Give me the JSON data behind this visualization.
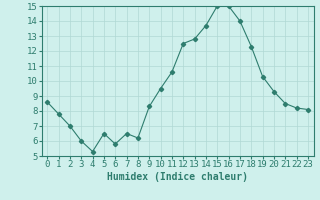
{
  "x": [
    0,
    1,
    2,
    3,
    4,
    5,
    6,
    7,
    8,
    9,
    10,
    11,
    12,
    13,
    14,
    15,
    16,
    17,
    18,
    19,
    20,
    21,
    22,
    23
  ],
  "y": [
    8.6,
    7.8,
    7.0,
    6.0,
    5.3,
    6.5,
    5.8,
    6.5,
    6.2,
    8.3,
    9.5,
    10.6,
    12.5,
    12.8,
    13.7,
    15.0,
    15.0,
    14.0,
    12.3,
    10.3,
    9.3,
    8.5,
    8.2,
    8.1
  ],
  "line_color": "#2e7d6e",
  "marker": "D",
  "marker_size": 2.2,
  "bg_color": "#cff0ec",
  "grid_color": "#b0d8d4",
  "xlabel": "Humidex (Indice chaleur)",
  "ylim": [
    5,
    15
  ],
  "xlim": [
    -0.5,
    23.5
  ],
  "yticks": [
    5,
    6,
    7,
    8,
    9,
    10,
    11,
    12,
    13,
    14,
    15
  ],
  "xticks": [
    0,
    1,
    2,
    3,
    4,
    5,
    6,
    7,
    8,
    9,
    10,
    11,
    12,
    13,
    14,
    15,
    16,
    17,
    18,
    19,
    20,
    21,
    22,
    23
  ],
  "tick_color": "#2e7d6e",
  "axis_color": "#2e7d6e",
  "label_fontsize": 7,
  "tick_fontsize": 6.5
}
